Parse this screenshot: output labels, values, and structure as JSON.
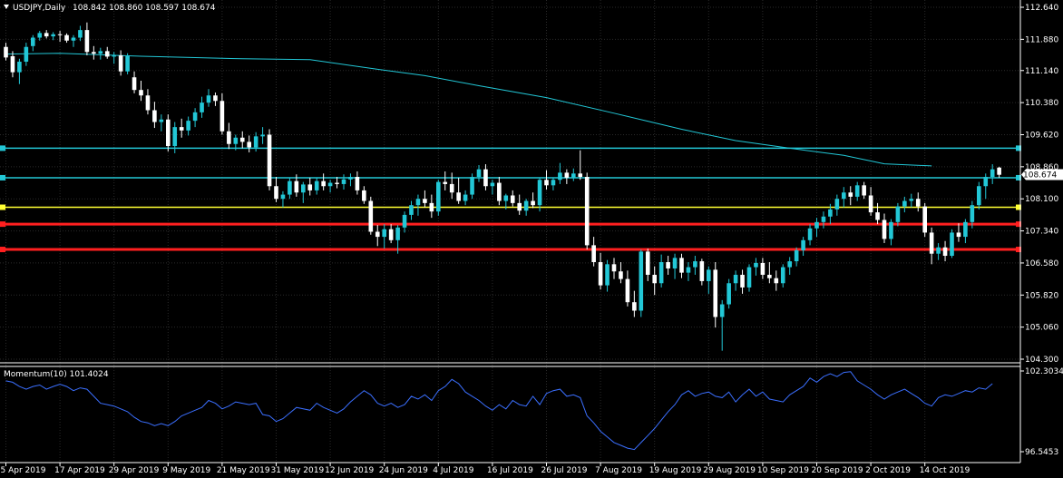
{
  "chart_data": [
    {
      "type": "candlestick",
      "title": "USDJPY,Daily",
      "ohlc_text": "108.842 108.860 108.597 108.674",
      "ylim": [
        104.3,
        112.64
      ],
      "y_ticks": [
        "112.640",
        "111.880",
        "111.140",
        "110.380",
        "109.620",
        "108.860",
        "108.100",
        "107.340",
        "106.580",
        "105.820",
        "105.060",
        "104.300"
      ],
      "price_marker": "108.674",
      "x_ticks": [
        "5 Apr 2019",
        "17 Apr 2019",
        "29 Apr 2019",
        "9 May 2019",
        "21 May 2019",
        "31 May 2019",
        "12 Jun 2019",
        "24 Jun 2019",
        "4 Jul 2019",
        "16 Jul 2019",
        "26 Jul 2019",
        "7 Aug 2019",
        "19 Aug 2019",
        "29 Aug 2019",
        "10 Sep 2019",
        "20 Sep 2019",
        "2 Oct 2019",
        "14 Oct 2019"
      ],
      "x_tick_index": [
        0,
        8,
        16,
        24,
        32,
        40,
        48,
        56,
        64,
        72,
        80,
        88,
        96,
        104,
        112,
        120,
        128,
        136
      ],
      "horizontal_levels": [
        {
          "price": 109.3,
          "color": "#22c7d6"
        },
        {
          "price": 108.6,
          "color": "#22c7d6"
        },
        {
          "price": 107.9,
          "color": "#ffff33"
        },
        {
          "price": 107.5,
          "color": "#ff1f1f"
        },
        {
          "price": 106.9,
          "color": "#ff1f1f"
        }
      ],
      "ma_points": [
        [
          0,
          111.53
        ],
        [
          8,
          111.55
        ],
        [
          20,
          111.48
        ],
        [
          35,
          111.42
        ],
        [
          45,
          111.4
        ],
        [
          55,
          111.17
        ],
        [
          62,
          111.02
        ],
        [
          70,
          110.78
        ],
        [
          80,
          110.5
        ],
        [
          90,
          110.13
        ],
        [
          100,
          109.75
        ],
        [
          108,
          109.48
        ],
        [
          116,
          109.3
        ],
        [
          124,
          109.13
        ],
        [
          130,
          108.93
        ],
        [
          137,
          108.88
        ]
      ],
      "candles": [
        [
          111.7,
          111.8,
          111.38,
          111.45
        ],
        [
          111.48,
          111.6,
          110.98,
          111.1
        ],
        [
          111.1,
          111.42,
          110.82,
          111.35
        ],
        [
          111.35,
          111.8,
          111.25,
          111.7
        ],
        [
          111.72,
          111.98,
          111.6,
          111.92
        ],
        [
          111.92,
          112.08,
          111.85,
          112.03
        ],
        [
          112.03,
          112.1,
          111.9,
          111.95
        ],
        [
          111.95,
          112.05,
          111.86,
          112.0
        ],
        [
          112.0,
          112.08,
          111.82,
          111.98
        ],
        [
          111.98,
          112.02,
          111.8,
          111.85
        ],
        [
          111.85,
          111.98,
          111.7,
          111.92
        ],
        [
          111.92,
          112.2,
          111.84,
          112.1
        ],
        [
          112.1,
          112.28,
          111.5,
          111.58
        ],
        [
          111.58,
          111.72,
          111.4,
          111.54
        ],
        [
          111.54,
          111.68,
          111.4,
          111.6
        ],
        [
          111.6,
          111.7,
          111.42,
          111.47
        ],
        [
          111.47,
          111.58,
          111.3,
          111.5
        ],
        [
          111.5,
          111.62,
          111.02,
          111.12
        ],
        [
          111.12,
          111.55,
          111.05,
          111.48
        ],
        [
          110.98,
          111.12,
          110.6,
          110.68
        ],
        [
          110.68,
          110.9,
          110.42,
          110.55
        ],
        [
          110.55,
          110.7,
          110.1,
          110.2
        ],
        [
          110.2,
          110.4,
          109.78,
          109.92
        ],
        [
          109.92,
          110.1,
          109.7,
          109.98
        ],
        [
          109.98,
          110.1,
          109.22,
          109.35
        ],
        [
          109.35,
          109.92,
          109.18,
          109.8
        ],
        [
          109.8,
          110.0,
          109.55,
          109.72
        ],
        [
          109.72,
          110.05,
          109.6,
          109.95
        ],
        [
          109.95,
          110.25,
          109.8,
          110.15
        ],
        [
          110.15,
          110.52,
          110.02,
          110.38
        ],
        [
          110.38,
          110.7,
          110.28,
          110.55
        ],
        [
          110.55,
          110.62,
          110.3,
          110.42
        ],
        [
          110.42,
          110.6,
          109.62,
          109.7
        ],
        [
          109.7,
          109.9,
          109.28,
          109.4
        ],
        [
          109.4,
          109.62,
          109.25,
          109.55
        ],
        [
          109.55,
          109.7,
          109.3,
          109.45
        ],
        [
          109.45,
          109.6,
          109.2,
          109.32
        ],
        [
          109.32,
          109.68,
          109.22,
          109.58
        ],
        [
          109.58,
          109.8,
          109.4,
          109.62
        ],
        [
          109.62,
          109.75,
          108.3,
          108.4
        ],
        [
          108.4,
          108.62,
          108.02,
          108.1
        ],
        [
          108.1,
          108.28,
          107.9,
          108.2
        ],
        [
          108.2,
          108.6,
          108.1,
          108.52
        ],
        [
          108.52,
          108.68,
          108.15,
          108.25
        ],
        [
          108.25,
          108.5,
          108.0,
          108.44
        ],
        [
          108.44,
          108.6,
          108.18,
          108.3
        ],
        [
          108.3,
          108.6,
          108.2,
          108.52
        ],
        [
          108.52,
          108.7,
          108.3,
          108.4
        ],
        [
          108.4,
          108.55,
          108.25,
          108.48
        ],
        [
          108.48,
          108.62,
          108.35,
          108.45
        ],
        [
          108.45,
          108.68,
          108.32,
          108.56
        ],
        [
          108.56,
          108.7,
          108.4,
          108.62
        ],
        [
          108.62,
          108.75,
          108.2,
          108.3
        ],
        [
          108.3,
          108.4,
          107.98,
          108.05
        ],
        [
          108.05,
          108.15,
          107.25,
          107.32
        ],
        [
          107.32,
          107.48,
          106.98,
          107.2
        ],
        [
          107.2,
          107.5,
          106.92,
          107.38
        ],
        [
          107.38,
          107.5,
          107.05,
          107.12
        ],
        [
          107.12,
          107.48,
          106.8,
          107.42
        ],
        [
          107.42,
          107.8,
          107.3,
          107.72
        ],
        [
          107.72,
          108.05,
          107.6,
          107.95
        ],
        [
          107.95,
          108.2,
          107.7,
          108.1
        ],
        [
          108.1,
          108.3,
          107.9,
          108.0
        ],
        [
          108.0,
          108.2,
          107.65,
          107.8
        ],
        [
          107.8,
          108.55,
          107.7,
          108.5
        ],
        [
          108.5,
          108.75,
          108.3,
          108.45
        ],
        [
          108.45,
          108.72,
          108.1,
          108.25
        ],
        [
          108.25,
          108.6,
          107.98,
          108.05
        ],
        [
          108.05,
          108.3,
          107.95,
          108.2
        ],
        [
          108.2,
          108.7,
          108.1,
          108.62
        ],
        [
          108.62,
          108.9,
          108.5,
          108.8
        ],
        [
          108.8,
          108.92,
          108.3,
          108.4
        ],
        [
          108.4,
          108.55,
          108.2,
          108.48
        ],
        [
          108.48,
          108.62,
          107.95,
          108.05
        ],
        [
          108.05,
          108.22,
          107.85,
          108.18
        ],
        [
          108.18,
          108.3,
          107.92,
          108.0
        ],
        [
          108.0,
          108.2,
          107.72,
          107.82
        ],
        [
          107.82,
          108.1,
          107.7,
          108.05
        ],
        [
          108.05,
          108.25,
          107.88,
          107.95
        ],
        [
          107.95,
          108.6,
          107.8,
          108.55
        ],
        [
          108.55,
          108.78,
          108.32,
          108.42
        ],
        [
          108.42,
          108.6,
          108.3,
          108.55
        ],
        [
          108.55,
          108.95,
          108.45,
          108.72
        ],
        [
          108.72,
          108.8,
          108.45,
          108.6
        ],
        [
          108.6,
          108.82,
          108.52,
          108.7
        ],
        [
          108.7,
          109.25,
          108.55,
          108.62
        ],
        [
          108.62,
          108.72,
          106.9,
          107.0
        ],
        [
          107.0,
          107.2,
          106.5,
          106.6
        ],
        [
          106.6,
          106.82,
          105.95,
          106.05
        ],
        [
          106.05,
          106.65,
          105.9,
          106.55
        ],
        [
          106.55,
          106.7,
          106.2,
          106.38
        ],
        [
          106.38,
          106.6,
          106.1,
          106.2
        ],
        [
          106.2,
          106.4,
          105.55,
          105.65
        ],
        [
          105.65,
          105.92,
          105.3,
          105.45
        ],
        [
          105.45,
          106.9,
          105.3,
          106.85
        ],
        [
          106.85,
          106.92,
          106.15,
          106.3
        ],
        [
          106.3,
          106.5,
          105.82,
          106.1
        ],
        [
          106.1,
          106.78,
          106.0,
          106.6
        ],
        [
          106.6,
          106.75,
          106.3,
          106.45
        ],
        [
          106.45,
          106.8,
          106.2,
          106.7
        ],
        [
          106.7,
          106.8,
          106.22,
          106.35
        ],
        [
          106.35,
          106.6,
          106.15,
          106.48
        ],
        [
          106.48,
          106.75,
          106.3,
          106.62
        ],
        [
          106.62,
          106.68,
          106.05,
          106.15
        ],
        [
          106.15,
          106.5,
          105.85,
          106.42
        ],
        [
          106.42,
          106.6,
          105.05,
          105.3
        ],
        [
          105.3,
          105.7,
          104.5,
          105.6
        ],
        [
          105.6,
          106.2,
          105.5,
          106.1
        ],
        [
          106.1,
          106.4,
          105.92,
          106.3
        ],
        [
          106.3,
          106.42,
          105.85,
          106.0
        ],
        [
          106.0,
          106.55,
          105.9,
          106.48
        ],
        [
          106.48,
          106.7,
          106.28,
          106.58
        ],
        [
          106.58,
          106.7,
          106.2,
          106.3
        ],
        [
          106.3,
          106.6,
          106.1,
          106.22
        ],
        [
          106.22,
          106.4,
          105.92,
          106.1
        ],
        [
          106.1,
          106.55,
          106.0,
          106.48
        ],
        [
          106.48,
          106.72,
          106.3,
          106.62
        ],
        [
          106.62,
          106.95,
          106.5,
          106.88
        ],
        [
          106.88,
          107.2,
          106.75,
          107.12
        ],
        [
          107.12,
          107.5,
          107.0,
          107.4
        ],
        [
          107.4,
          107.65,
          107.2,
          107.55
        ],
        [
          107.55,
          107.8,
          107.4,
          107.68
        ],
        [
          107.68,
          107.98,
          107.5,
          107.85
        ],
        [
          107.85,
          108.2,
          107.7,
          108.1
        ],
        [
          108.1,
          108.38,
          107.9,
          108.25
        ],
        [
          108.25,
          108.4,
          107.95,
          108.15
        ],
        [
          108.15,
          108.5,
          108.05,
          108.42
        ],
        [
          108.42,
          108.5,
          108.1,
          108.18
        ],
        [
          108.18,
          108.38,
          107.7,
          107.78
        ],
        [
          107.78,
          108.0,
          107.5,
          107.6
        ],
        [
          107.6,
          107.75,
          107.05,
          107.15
        ],
        [
          107.15,
          107.62,
          107.0,
          107.55
        ],
        [
          107.55,
          108.0,
          107.45,
          107.92
        ],
        [
          107.92,
          108.15,
          107.78,
          108.05
        ],
        [
          108.05,
          108.22,
          107.9,
          108.1
        ],
        [
          108.1,
          108.25,
          107.8,
          107.92
        ],
        [
          107.92,
          108.0,
          107.2,
          107.3
        ],
        [
          107.3,
          107.42,
          106.55,
          106.8
        ],
        [
          106.8,
          107.05,
          106.65,
          106.95
        ],
        [
          106.95,
          107.1,
          106.62,
          106.75
        ],
        [
          106.75,
          107.38,
          106.7,
          107.3
        ],
        [
          107.3,
          107.52,
          107.08,
          107.2
        ],
        [
          107.2,
          107.62,
          107.05,
          107.55
        ],
        [
          107.55,
          108.05,
          107.4,
          107.95
        ],
        [
          107.95,
          108.5,
          107.85,
          108.4
        ],
        [
          108.4,
          108.7,
          108.1,
          108.62
        ],
        [
          108.62,
          108.92,
          108.45,
          108.8
        ],
        [
          108.84,
          108.86,
          108.6,
          108.67
        ]
      ]
    },
    {
      "type": "line",
      "title": "Momentum(10) 101.4024",
      "ylim": [
        96.5453,
        102.3034
      ],
      "y_ticks": [
        "102.3034",
        "96.5453"
      ],
      "values": [
        101.6,
        101.5,
        101.2,
        101.0,
        101.2,
        101.3,
        101.0,
        101.2,
        101.35,
        101.2,
        100.9,
        101.1,
        101.0,
        100.5,
        100.0,
        99.9,
        99.8,
        99.6,
        99.4,
        99.0,
        98.7,
        98.6,
        98.4,
        98.55,
        98.4,
        98.7,
        99.1,
        99.3,
        99.5,
        99.7,
        100.2,
        100.0,
        99.6,
        99.8,
        100.1,
        100.0,
        99.9,
        100.0,
        99.2,
        99.1,
        98.7,
        98.9,
        99.3,
        99.7,
        99.6,
        99.5,
        100.0,
        99.7,
        99.5,
        99.3,
        99.6,
        100.1,
        100.5,
        100.9,
        100.6,
        100.0,
        99.8,
        100.0,
        99.7,
        99.9,
        100.5,
        100.3,
        100.6,
        100.2,
        100.9,
        101.2,
        101.7,
        101.4,
        100.8,
        100.5,
        100.2,
        99.8,
        99.5,
        99.9,
        99.6,
        100.2,
        99.9,
        99.8,
        100.5,
        99.9,
        100.7,
        100.9,
        101.0,
        100.5,
        100.6,
        100.4,
        99.1,
        98.6,
        98.0,
        97.6,
        97.2,
        97.0,
        96.8,
        96.7,
        97.2,
        97.7,
        98.2,
        98.8,
        99.4,
        99.9,
        100.6,
        100.9,
        100.5,
        100.7,
        100.8,
        100.5,
        100.4,
        100.8,
        100.1,
        100.6,
        101.0,
        100.5,
        100.8,
        100.3,
        100.2,
        100.1,
        100.6,
        100.9,
        101.2,
        101.8,
        101.5,
        101.9,
        102.1,
        101.9,
        102.2,
        102.25,
        101.6,
        101.3,
        101.0,
        100.6,
        100.3,
        100.6,
        100.8,
        101.0,
        100.7,
        100.4,
        100.0,
        99.8,
        100.4,
        100.6,
        100.5,
        100.7,
        100.9,
        100.8,
        101.1,
        101.0,
        101.4
      ]
    }
  ]
}
